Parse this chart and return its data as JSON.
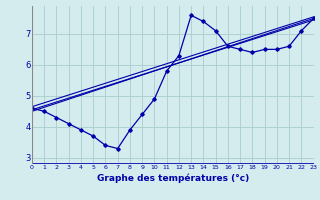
{
  "xlabel": "Graphe des températures (°c)",
  "background_color": "#d4ecee",
  "grid_color": "#aacccc",
  "line_color": "#0000aa",
  "xlim": [
    0,
    23
  ],
  "ylim": [
    2.8,
    7.9
  ],
  "xticks": [
    0,
    1,
    2,
    3,
    4,
    5,
    6,
    7,
    8,
    9,
    10,
    11,
    12,
    13,
    14,
    15,
    16,
    17,
    18,
    19,
    20,
    21,
    22,
    23
  ],
  "yticks": [
    3,
    4,
    5,
    6,
    7
  ],
  "curve1_x": [
    0,
    1,
    2,
    3,
    4,
    5,
    6,
    7,
    8,
    9,
    10,
    11,
    12,
    13,
    14,
    15,
    16,
    17,
    18,
    19,
    20,
    21,
    22,
    23
  ],
  "curve1_y": [
    4.6,
    4.5,
    4.3,
    4.1,
    3.9,
    3.7,
    3.4,
    3.3,
    3.9,
    4.4,
    4.9,
    5.8,
    6.3,
    7.6,
    7.4,
    7.1,
    6.6,
    6.5,
    6.4,
    6.5,
    6.5,
    6.6,
    7.1,
    7.5
  ],
  "curve2_x": [
    0,
    23
  ],
  "curve2_y": [
    4.5,
    7.5
  ],
  "curve3_x": [
    0,
    23
  ],
  "curve3_y": [
    4.55,
    7.45
  ],
  "curve4_x": [
    0,
    23
  ],
  "curve4_y": [
    4.65,
    7.55
  ]
}
